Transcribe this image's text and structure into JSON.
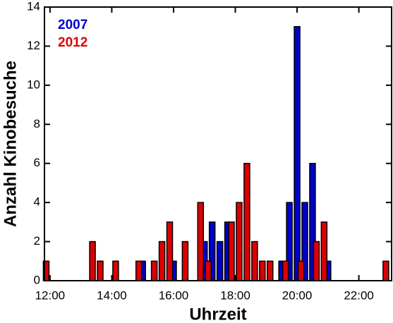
{
  "chart_data": {
    "type": "bar",
    "xlabel": "Uhrzeit",
    "ylabel": "Anzahl Kinobesuche",
    "xlim": [
      11.82,
      23.06
    ],
    "ylim": [
      0,
      14
    ],
    "xticks": [
      {
        "value": 12,
        "label": "12:00"
      },
      {
        "value": 14,
        "label": "14:00"
      },
      {
        "value": 16,
        "label": "16:00"
      },
      {
        "value": 18,
        "label": "18:00"
      },
      {
        "value": 20,
        "label": "20:00"
      },
      {
        "value": 22,
        "label": "22:00"
      }
    ],
    "yticks": [
      0,
      2,
      4,
      6,
      8,
      10,
      12,
      14
    ],
    "legend": "top-left",
    "series": [
      {
        "name": "2007",
        "color": "#0000cc",
        "x": [
          15.0,
          16.0,
          17.0,
          17.25,
          17.5,
          17.75,
          19.5,
          19.75,
          20.0,
          20.25,
          20.5,
          21.0
        ],
        "values": [
          1,
          1,
          2,
          3,
          2,
          3,
          1,
          4,
          13,
          4,
          6,
          1
        ]
      },
      {
        "name": "2012",
        "color": "#dd0000",
        "x": [
          11.875,
          13.375,
          13.625,
          14.125,
          14.875,
          15.375,
          15.625,
          15.875,
          16.375,
          16.875,
          17.125,
          17.875,
          18.125,
          18.375,
          18.625,
          18.875,
          19.125,
          19.625,
          20.125,
          20.625,
          20.875,
          22.875
        ],
        "values": [
          1,
          2,
          1,
          1,
          1,
          1,
          2,
          3,
          2,
          4,
          1,
          3,
          4,
          6,
          2,
          1,
          1,
          1,
          1,
          2,
          3,
          1
        ]
      }
    ]
  }
}
